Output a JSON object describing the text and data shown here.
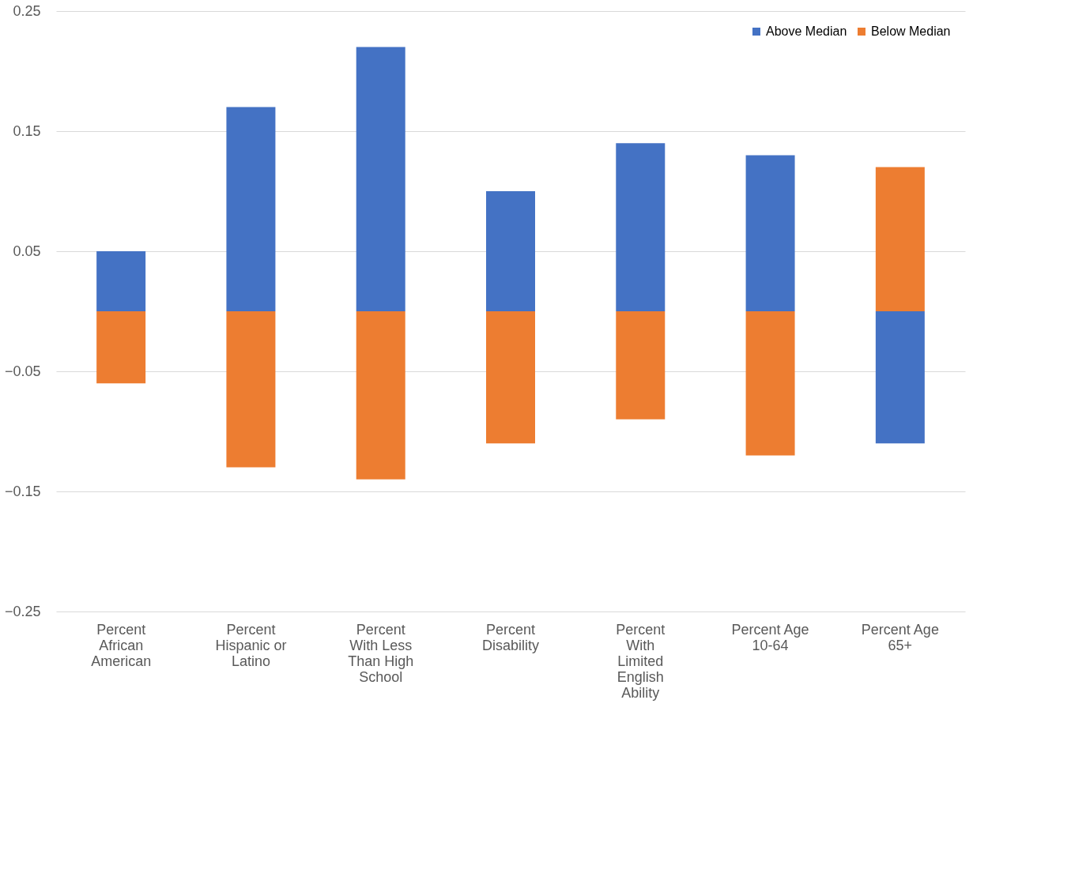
{
  "chart_data": {
    "type": "bar",
    "stacked": true,
    "categories": [
      "Percent African American",
      "Percent Hispanic or Latino",
      "Percent With Less Than High School",
      "Percent Disability",
      "Percent With Limited English Ability",
      "Percent Age 10-64",
      "Percent Age 65+"
    ],
    "series": [
      {
        "name": "Above Median",
        "color": "#4472c4",
        "values": [
          0.05,
          0.17,
          0.22,
          0.1,
          0.14,
          0.13,
          -0.11
        ]
      },
      {
        "name": "Below Median",
        "color": "#ed7d31",
        "values": [
          -0.06,
          -0.13,
          -0.14,
          -0.11,
          -0.09,
          -0.12,
          0.12
        ]
      }
    ],
    "ylim": [
      -0.25,
      0.25
    ],
    "yticks": [
      -0.25,
      -0.15,
      -0.05,
      0.05,
      0.15,
      0.25
    ],
    "grid": "y",
    "legend": "top right"
  }
}
